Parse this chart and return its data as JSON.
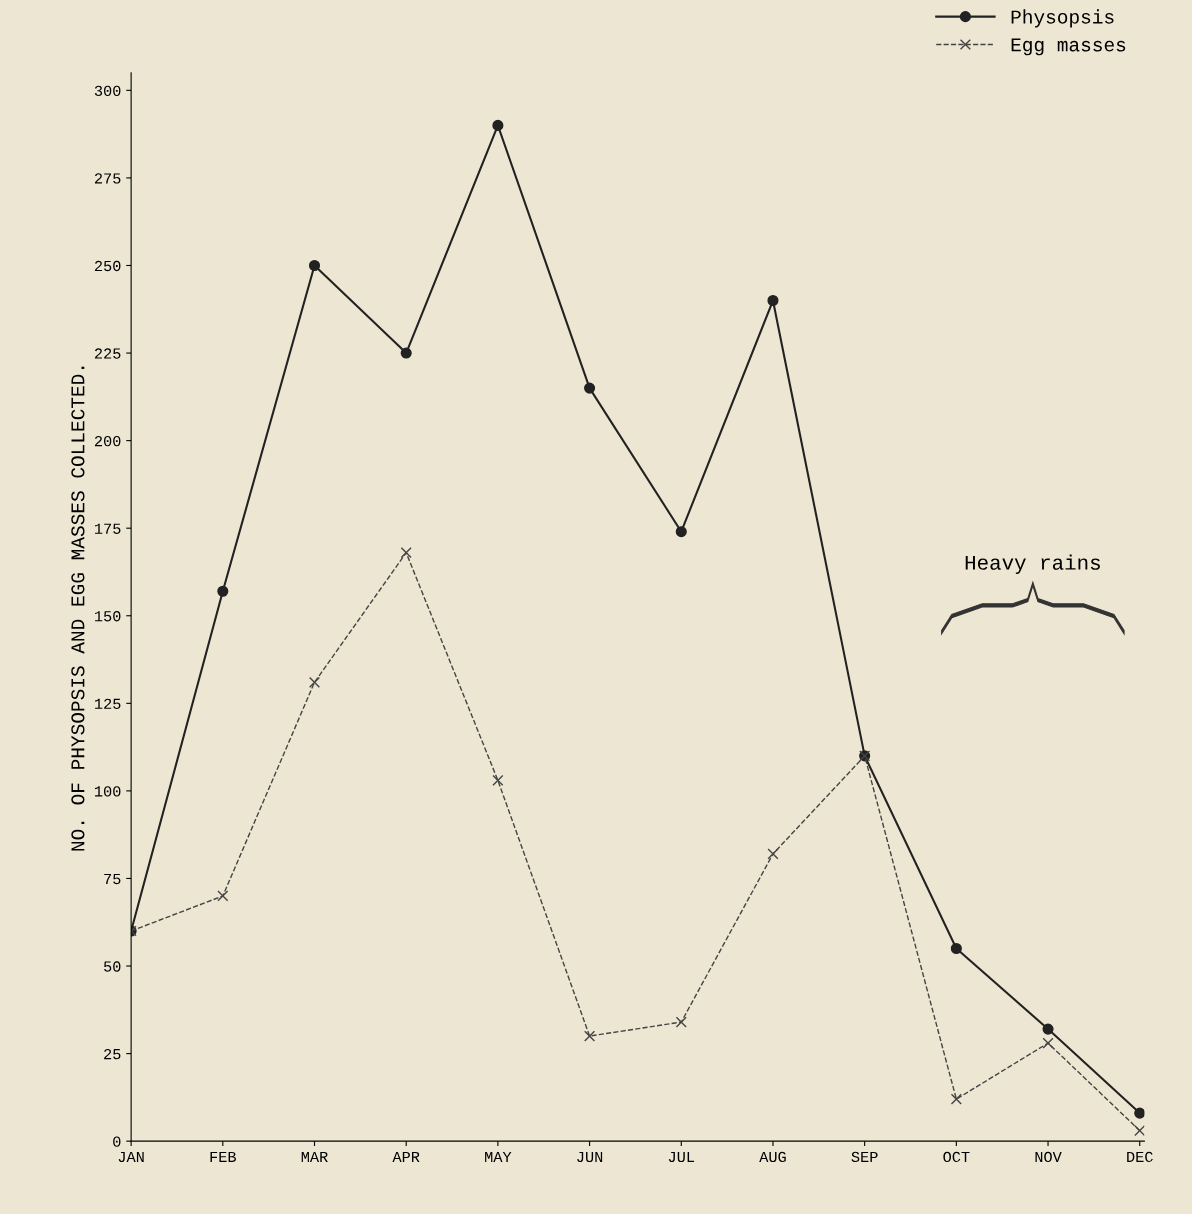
{
  "chart_data": {
    "type": "line",
    "ylabel": "NO. OF PHYSOPSIS AND EGG MASSES COLLECTED.",
    "categories": [
      "JAN",
      "FEB",
      "MAR",
      "APR",
      "MAY",
      "JUN",
      "JUL",
      "AUG",
      "SEP",
      "OCT",
      "NOV",
      "DEC"
    ],
    "series": [
      {
        "name": "Physopsis",
        "color": "#222222",
        "marker": "circle",
        "line_style": "solid",
        "values": [
          60,
          157,
          250,
          225,
          290,
          215,
          174,
          240,
          110,
          55,
          32,
          8
        ]
      },
      {
        "name": "Egg masses",
        "color": "#444444",
        "marker": "cross",
        "line_style": "dashed",
        "values": [
          60,
          70,
          131,
          168,
          103,
          30,
          34,
          82,
          110,
          12,
          28,
          3
        ]
      }
    ],
    "ylim": [
      0,
      305
    ],
    "yticks": [
      0,
      25,
      50,
      75,
      100,
      125,
      150,
      175,
      200,
      225,
      250,
      275,
      300
    ],
    "annotations": [
      "Heavy rains"
    ],
    "grid": false,
    "legend": "top right"
  }
}
